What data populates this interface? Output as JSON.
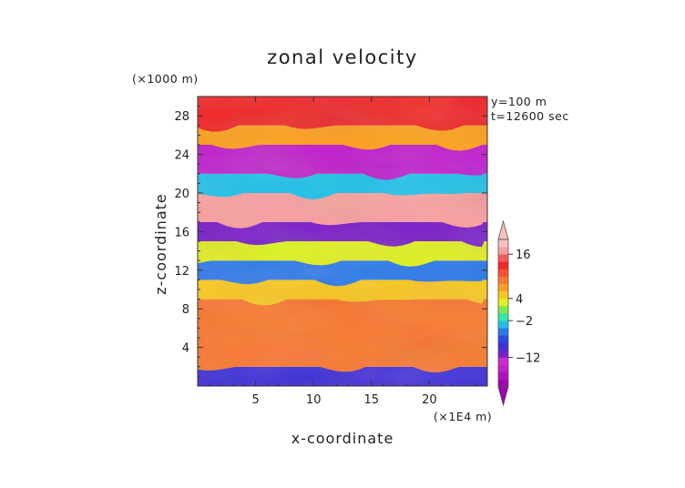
{
  "chart_data": {
    "type": "heatmap",
    "title": "zonal velocity",
    "xlabel": "x-coordinate",
    "ylabel": "z-coordinate",
    "x_unit": "(×1E4 m)",
    "y_unit": "(×1000 m)",
    "annotations": [
      "y=100 m",
      "t=12600 sec"
    ],
    "xlim": [
      0,
      25
    ],
    "ylim": [
      0,
      30
    ],
    "x_ticks": [
      5,
      10,
      15,
      20
    ],
    "x_tick_labels": [
      "5",
      "10",
      "15",
      "20"
    ],
    "y_ticks": [
      4,
      8,
      12,
      16,
      20,
      24,
      28
    ],
    "y_tick_labels": [
      "4",
      "8",
      "12",
      "16",
      "20",
      "24",
      "28"
    ],
    "colorbar": {
      "tick_values": [
        16,
        4,
        -2,
        -12
      ],
      "tick_labels": [
        "16",
        "4",
        "−2",
        "−12"
      ],
      "levels": [
        -20,
        -18,
        -16,
        -14,
        -12,
        -10,
        -8,
        -6,
        -4,
        -2,
        0,
        2,
        4,
        6,
        8,
        10,
        12,
        14,
        16,
        18,
        20
      ],
      "colors": [
        "#a000b0",
        "#b010c0",
        "#c020cc",
        "#d02ad8",
        "#7a20c8",
        "#3f30d8",
        "#2a4ae0",
        "#2f7ae8",
        "#20c0e8",
        "#30e8a8",
        "#80e850",
        "#e0f020",
        "#f8c820",
        "#fca020",
        "#f87830",
        "#f85030",
        "#f02828",
        "#f85858",
        "#f8a0a0",
        "#f8c0c0"
      ]
    },
    "bands": [
      {
        "z": [
          0,
          2
        ],
        "value": -10
      },
      {
        "z": [
          2,
          5
        ],
        "value": 8
      },
      {
        "z": [
          5,
          9
        ],
        "value": 9
      },
      {
        "z": [
          9,
          11
        ],
        "value": 5
      },
      {
        "z": [
          11,
          13
        ],
        "value": -6
      },
      {
        "z": [
          13,
          15
        ],
        "value": 2
      },
      {
        "z": [
          15,
          17
        ],
        "value": -12
      },
      {
        "z": [
          17,
          20
        ],
        "value": 16
      },
      {
        "z": [
          20,
          22
        ],
        "value": -4
      },
      {
        "z": [
          22,
          25
        ],
        "value": -16
      },
      {
        "z": [
          25,
          27
        ],
        "value": 6
      },
      {
        "z": [
          27,
          30
        ],
        "value": 12
      }
    ]
  }
}
